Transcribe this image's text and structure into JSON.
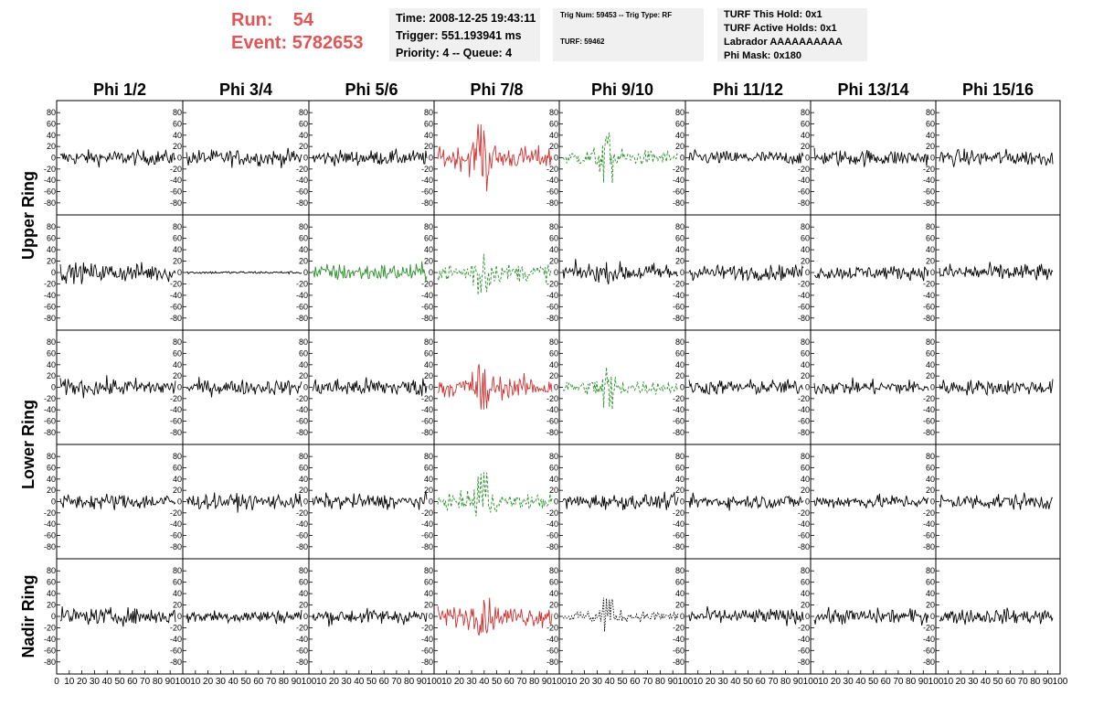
{
  "header": {
    "run_label": "Run:",
    "run_value": "54",
    "event_label": "Event:",
    "event_value": "5782653",
    "time_line": "Time: 2008-12-25 19:43:11",
    "trigger_line": "Trigger: 551.193941 ms",
    "priority_line": "Priority: 4 -- Queue: 4",
    "trig_line": "Trig Num: 59453 -- Trig Type: RF",
    "turf_line": "TURF: 59462",
    "turf_hold_line": "TURF This Hold: 0x1",
    "turf_active_line": "TURF Active Holds: 0x1",
    "labrador_line": "Labrador AAAAAAAAAA",
    "phi_mask_line": "Phi Mask: 0x180"
  },
  "colors": {
    "run_text": "#e05555",
    "info_bg": "#f0f0f0",
    "trace_black": "#000000",
    "trace_red": "#d03030",
    "trace_green": "#2a8f2a"
  },
  "chart_data": {
    "type": "line",
    "columns": [
      "Phi 1/2",
      "Phi 3/4",
      "Phi 5/6",
      "Phi 7/8",
      "Phi 9/10",
      "Phi 11/12",
      "Phi 13/14",
      "Phi 15/16"
    ],
    "ring_labels": [
      {
        "label": "Upper Ring",
        "rows": [
          0,
          1
        ]
      },
      {
        "label": "Lower Ring",
        "rows": [
          2,
          3
        ]
      },
      {
        "label": "Nadir Ring",
        "rows": [
          4
        ]
      }
    ],
    "xlim": [
      0,
      100
    ],
    "ylim": [
      -90,
      90
    ],
    "y_ticks": [
      -80,
      -60,
      -40,
      -20,
      0,
      20,
      40,
      60,
      80
    ],
    "x_ticks": [
      0,
      10,
      20,
      30,
      40,
      50,
      60,
      70,
      80,
      90,
      100
    ],
    "grid": false,
    "panels": [
      [
        {
          "color": "black",
          "style": "solid",
          "amp": 12
        },
        {
          "color": "black",
          "style": "solid",
          "amp": 13
        },
        {
          "color": "black",
          "style": "solid",
          "amp": 12
        },
        {
          "color": "red",
          "style": "solid",
          "amp": 18,
          "burst": 60
        },
        {
          "color": "green",
          "style": "dashed",
          "amp": 12,
          "burst": 45
        },
        {
          "color": "black",
          "style": "solid",
          "amp": 11
        },
        {
          "color": "black",
          "style": "solid",
          "amp": 13
        },
        {
          "color": "black",
          "style": "solid",
          "amp": 13
        }
      ],
      [
        {
          "color": "black",
          "style": "solid",
          "amp": 15
        },
        {
          "color": "black",
          "style": "solid",
          "amp": 2
        },
        {
          "color": "green",
          "style": "solid",
          "amp": 14
        },
        {
          "color": "green",
          "style": "dashed",
          "amp": 14,
          "burst": 40
        },
        {
          "color": "black",
          "style": "solid",
          "amp": 15
        },
        {
          "color": "black",
          "style": "solid",
          "amp": 12
        },
        {
          "color": "black",
          "style": "solid",
          "amp": 11
        },
        {
          "color": "black",
          "style": "solid",
          "amp": 14
        }
      ],
      [
        {
          "color": "black",
          "style": "solid",
          "amp": 14
        },
        {
          "color": "black",
          "style": "solid",
          "amp": 12
        },
        {
          "color": "black",
          "style": "solid",
          "amp": 15
        },
        {
          "color": "red",
          "style": "solid",
          "amp": 17,
          "burst": 40
        },
        {
          "color": "green",
          "style": "dashed",
          "amp": 11,
          "burst": 40
        },
        {
          "color": "black",
          "style": "solid",
          "amp": 12
        },
        {
          "color": "black",
          "style": "solid",
          "amp": 12
        },
        {
          "color": "black",
          "style": "solid",
          "amp": 12
        }
      ],
      [
        {
          "color": "black",
          "style": "solid",
          "amp": 13
        },
        {
          "color": "black",
          "style": "solid",
          "amp": 12
        },
        {
          "color": "black",
          "style": "solid",
          "amp": 12
        },
        {
          "color": "green",
          "style": "dashed",
          "amp": 12,
          "burst": 55
        },
        {
          "color": "black",
          "style": "solid",
          "amp": 12
        },
        {
          "color": "black",
          "style": "solid",
          "amp": 11
        },
        {
          "color": "black",
          "style": "solid",
          "amp": 11
        },
        {
          "color": "black",
          "style": "solid",
          "amp": 13
        }
      ],
      [
        {
          "color": "black",
          "style": "solid",
          "amp": 13
        },
        {
          "color": "black",
          "style": "solid",
          "amp": 11
        },
        {
          "color": "black",
          "style": "solid",
          "amp": 12
        },
        {
          "color": "red",
          "style": "solid",
          "amp": 16,
          "burst": 35
        },
        {
          "color": "black",
          "style": "dotted",
          "amp": 8,
          "burst": 35
        },
        {
          "color": "black",
          "style": "solid",
          "amp": 12
        },
        {
          "color": "black",
          "style": "solid",
          "amp": 12
        },
        {
          "color": "black",
          "style": "solid",
          "amp": 12
        }
      ]
    ]
  }
}
